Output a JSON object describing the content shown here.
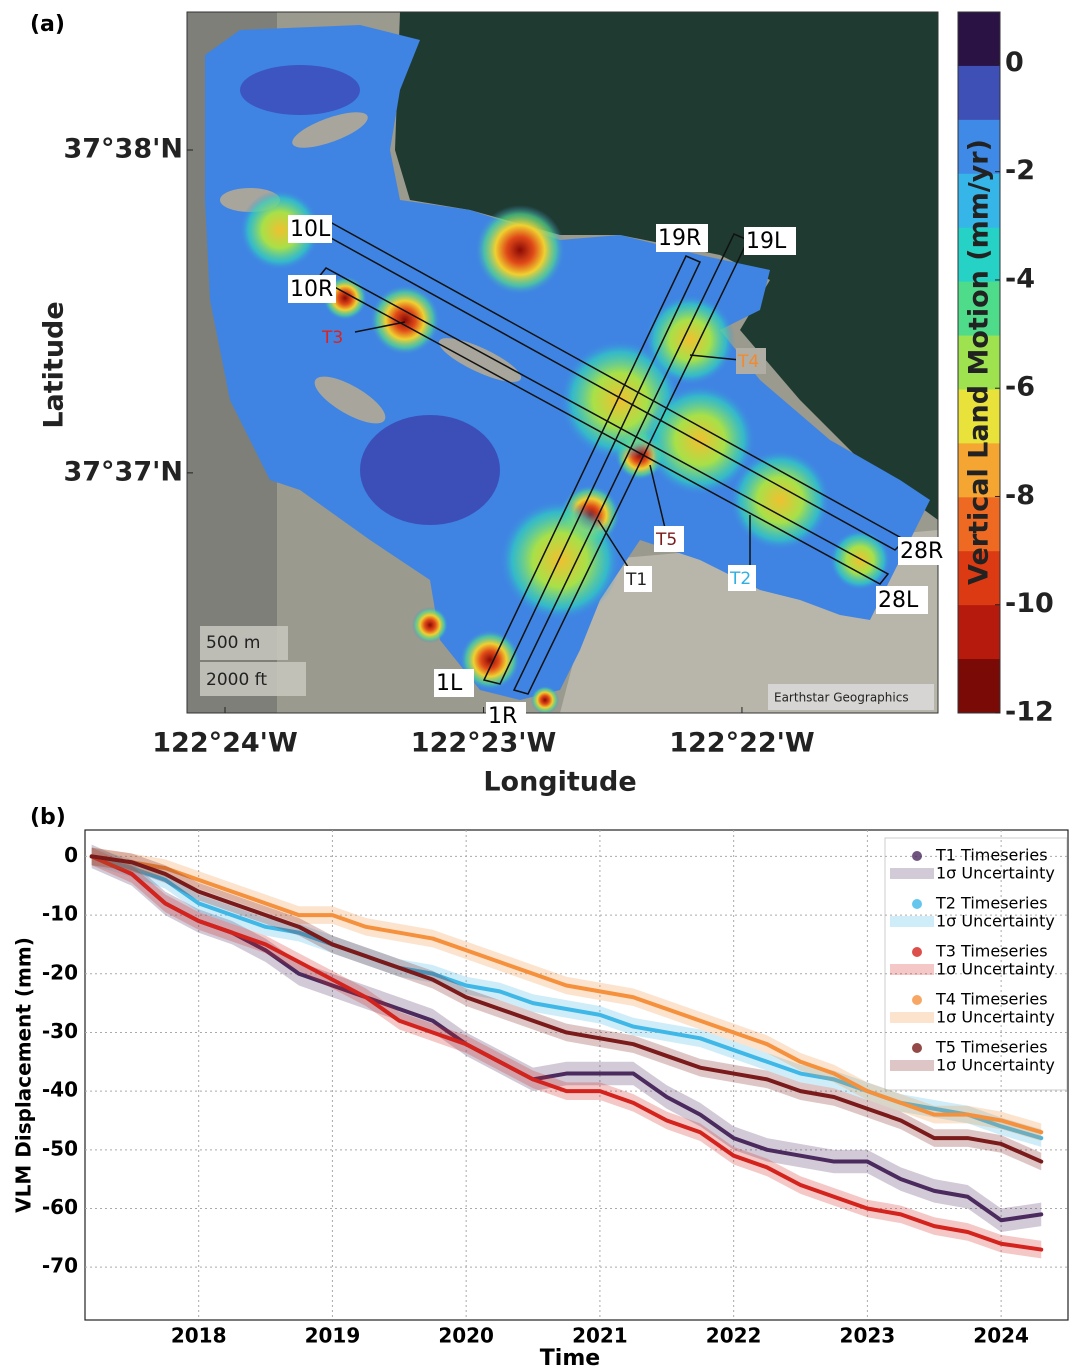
{
  "chart_data": [
    {
      "type": "map",
      "panel": "(a)",
      "xlabel": "Longitude",
      "ylabel": "Latitude",
      "xlim": [
        -122.40245,
        -122.35403
      ],
      "ylim": [
        37.60428,
        37.64045
      ],
      "xticks": [
        {
          "value": -122.4,
          "label": "122°24'W"
        },
        {
          "value": -122.38333,
          "label": "122°23'W"
        },
        {
          "value": -122.36667,
          "label": "122°22'W"
        }
      ],
      "yticks": [
        {
          "value": 37.61667,
          "label": "37°37'N"
        },
        {
          "value": 37.63333,
          "label": "37°38'N"
        }
      ],
      "colorbar": {
        "label": "Vertical Land Motion (mm/yr)",
        "lim": [
          -12,
          0.95
        ],
        "ticks": [
          0,
          -2,
          -4,
          -6,
          -8,
          -10,
          -12
        ],
        "colors": [
          "#2b1245",
          "#3e4fb5",
          "#3f8ae6",
          "#35b5e8",
          "#26d1c5",
          "#4edb8a",
          "#9ee24f",
          "#e8e23a",
          "#f5a531",
          "#ee6a22",
          "#db3a12",
          "#b51a0c",
          "#7a0a06"
        ]
      },
      "runway_labels": [
        "10L",
        "10R",
        "19R",
        "19L",
        "28R",
        "28L",
        "1L",
        "1R"
      ],
      "point_labels": [
        {
          "text": "T1",
          "color": "#222222"
        },
        {
          "text": "T2",
          "color": "#2fb0e0"
        },
        {
          "text": "T3",
          "color": "#e0201a"
        },
        {
          "text": "T4",
          "color": "#f08a30"
        },
        {
          "text": "T5",
          "color": "#7a1a1a"
        }
      ],
      "scale_labels": [
        "500 m",
        "2000 ft"
      ],
      "attribution": "Earthstar Geographics"
    },
    {
      "type": "line",
      "panel": "(b)",
      "xlabel": "Time",
      "ylabel": "VLM Displacement (mm)",
      "x": [
        2017.2,
        2017.5,
        2017.75,
        2018.0,
        2018.25,
        2018.5,
        2018.75,
        2019.0,
        2019.25,
        2019.5,
        2019.75,
        2020.0,
        2020.25,
        2020.5,
        2020.75,
        2021.0,
        2021.25,
        2021.5,
        2021.75,
        2022.0,
        2022.25,
        2022.5,
        2022.75,
        2023.0,
        2023.25,
        2023.5,
        2023.75,
        2024.0,
        2024.3
      ],
      "xlim": [
        2017.15,
        2024.5
      ],
      "xticks": [
        2018,
        2019,
        2020,
        2021,
        2022,
        2023,
        2024
      ],
      "ylim": [
        -79,
        4.5
      ],
      "yticks": [
        0,
        -10,
        -20,
        -30,
        -40,
        -50,
        -60,
        -70
      ],
      "grid": true,
      "series": [
        {
          "name": "T1 Timeseries",
          "band_name": "1σ Uncertainty",
          "color": "#4b2a5e",
          "uncertainty": 2,
          "values": [
            0,
            -3,
            -8,
            -11,
            -13,
            -16,
            -20,
            -22,
            -24,
            -26,
            -28,
            -32,
            -35,
            -38,
            -37,
            -37,
            -37,
            -41,
            -44,
            -48,
            -50,
            -51,
            -52,
            -52,
            -55,
            -57,
            -58,
            -62,
            -61
          ]
        },
        {
          "name": "T2 Timeseries",
          "band_name": "1σ Uncertainty",
          "color": "#3fb8e8",
          "uncertainty": 1.5,
          "values": [
            0,
            -2,
            -4,
            -8,
            -10,
            -12,
            -13,
            -15,
            -17,
            -19,
            -20,
            -22,
            -23,
            -25,
            -26,
            -27,
            -29,
            -30,
            -31,
            -33,
            -35,
            -37,
            -38,
            -40,
            -42,
            -43,
            -44,
            -46,
            -48
          ]
        },
        {
          "name": "T3 Timeseries",
          "band_name": "1σ Uncertainty",
          "color": "#d4231d",
          "uncertainty": 1.5,
          "values": [
            0,
            -3,
            -8,
            -11,
            -13,
            -15,
            -18,
            -21,
            -24,
            -28,
            -30,
            -32,
            -35,
            -38,
            -40,
            -40,
            -42,
            -45,
            -47,
            -51,
            -53,
            -56,
            -58,
            -60,
            -61,
            -63,
            -64,
            -66,
            -67
          ]
        },
        {
          "name": "T4 Timeseries",
          "band_name": "1σ Uncertainty",
          "color": "#f5913c",
          "uncertainty": 1.5,
          "values": [
            0,
            -1,
            -2,
            -4,
            -6,
            -8,
            -10,
            -10,
            -12,
            -13,
            -14,
            -16,
            -18,
            -20,
            -22,
            -23,
            -24,
            -26,
            -28,
            -30,
            -32,
            -35,
            -37,
            -40,
            -42,
            -44,
            -44,
            -45,
            -47
          ]
        },
        {
          "name": "T5 Timeseries",
          "band_name": "1σ Uncertainty",
          "color": "#7a1a1a",
          "uncertainty": 1.5,
          "values": [
            0,
            -1,
            -3,
            -6,
            -8,
            -10,
            -12,
            -15,
            -17,
            -19,
            -21,
            -24,
            -26,
            -28,
            -30,
            -31,
            -32,
            -34,
            -36,
            -37,
            -38,
            -40,
            -41,
            -43,
            -45,
            -48,
            -48,
            -49,
            -52
          ]
        }
      ]
    }
  ]
}
